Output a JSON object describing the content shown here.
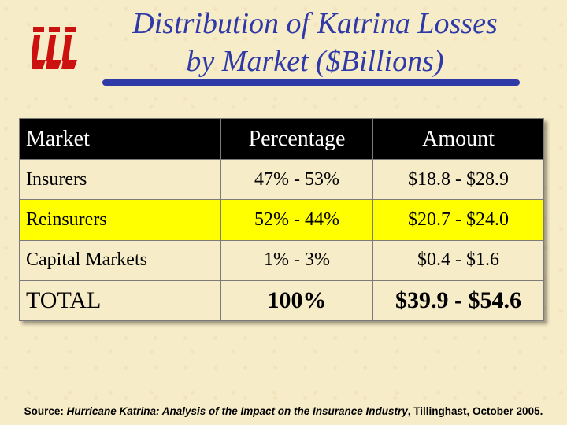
{
  "slide": {
    "title_line1": "Distribution of Katrina Losses",
    "title_line2": "by Market ($Billions)",
    "logo": {
      "icon": "iii-logo",
      "text": "iii",
      "color": "#cc1111"
    },
    "accent_color": "#2f3aa8",
    "highlight_color": "#ffff00"
  },
  "table": {
    "headers": [
      "Market",
      "Percentage",
      "Amount"
    ],
    "rows": [
      {
        "market": "Insurers",
        "percentage": "47% - 53%",
        "amount": "$18.8 - $28.9"
      },
      {
        "market": "Reinsurers",
        "percentage": "52% - 44%",
        "amount": "$20.7 - $24.0"
      },
      {
        "market": "Capital Markets",
        "percentage": "1% - 3%",
        "amount": "$0.4 - $1.6"
      },
      {
        "market": "TOTAL",
        "percentage": "100%",
        "amount": "$39.9 - $54.6"
      }
    ]
  },
  "footer": {
    "source_prefix": "Source: ",
    "source_title": "Hurricane Katrina: Analysis of the Impact on the Insurance Industry",
    "source_suffix": ", Tillinghast, October 2005."
  }
}
